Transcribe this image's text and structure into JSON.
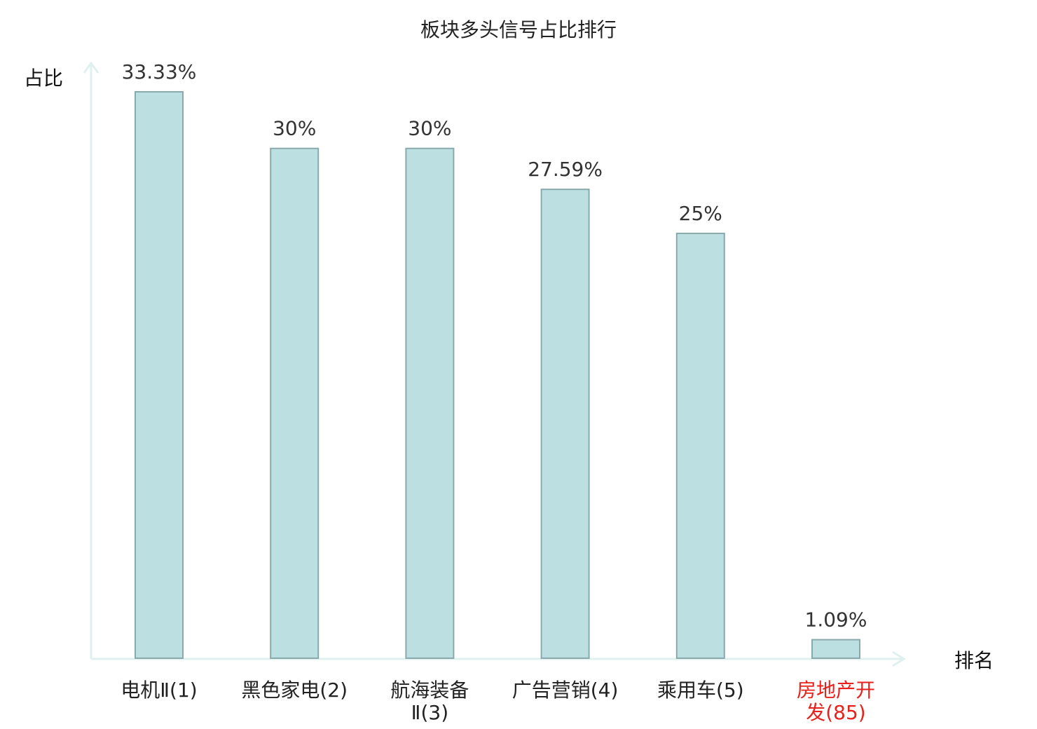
{
  "chart_data": {
    "type": "bar",
    "title": "板块多头信号占比排行",
    "xlabel": "排名",
    "ylabel": "占比",
    "ylim": [
      0,
      34.5
    ],
    "grid": false,
    "categories": [
      {
        "lines": [
          "电机Ⅱ(1)"
        ],
        "highlight": false
      },
      {
        "lines": [
          "黑色家电(2)"
        ],
        "highlight": false
      },
      {
        "lines": [
          "航海装备",
          "Ⅱ(3)"
        ],
        "highlight": false
      },
      {
        "lines": [
          "广告营销(4)"
        ],
        "highlight": false
      },
      {
        "lines": [
          "乘用车(5)"
        ],
        "highlight": false
      },
      {
        "lines": [
          "房地产开",
          "发(85)"
        ],
        "highlight": true
      }
    ],
    "values": [
      33.33,
      30,
      30,
      27.59,
      25,
      1.09
    ],
    "value_labels": [
      "33.33%",
      "30%",
      "30%",
      "27.59%",
      "25%",
      "1.09%"
    ],
    "colors": {
      "bar_fill": "#bce0e2",
      "bar_stroke": "#8aa9ab",
      "axis": "#dff1ef",
      "label": "#222222",
      "highlight_label": "#e8211c"
    }
  }
}
